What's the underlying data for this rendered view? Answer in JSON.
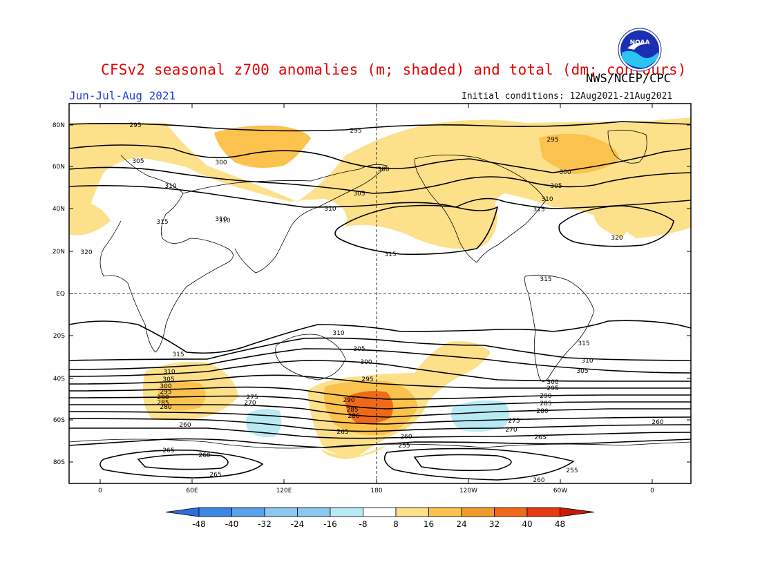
{
  "header": {
    "title": "CFSv2 seasonal z700 anomalies (m; shaded) and total (dm; contours)",
    "agency": "NWS/NCEP/CPC",
    "season": "Jun-Jul-Aug 2021",
    "initial_conditions": "Initial conditions: 12Aug2021-21Aug2021",
    "logo_text": "NOAA"
  },
  "axes": {
    "lat_ticks": [
      "80N",
      "60N",
      "40N",
      "20N",
      "EQ",
      "20S",
      "40S",
      "60S",
      "80S"
    ],
    "lon_ticks": [
      "0",
      "60E",
      "120E",
      "180",
      "120W",
      "60W",
      "0"
    ]
  },
  "colorbar": {
    "labels": [
      "-48",
      "-40",
      "-32",
      "-24",
      "-16",
      "-8",
      "8",
      "16",
      "24",
      "32",
      "40",
      "48"
    ],
    "colors": [
      "#2a6fdb",
      "#3d86e6",
      "#5aa0ea",
      "#8cc8f0",
      "#b8eaf4",
      "#ffffff",
      "#fde08a",
      "#fbc24e",
      "#f39a2c",
      "#ee6a1a",
      "#e53a0e",
      "#c81a08"
    ]
  },
  "contour_labels": [
    {
      "text": "295"
    },
    {
      "text": "295"
    },
    {
      "text": "295"
    },
    {
      "text": "305"
    },
    {
      "text": "300"
    },
    {
      "text": "300"
    },
    {
      "text": "300"
    },
    {
      "text": "310"
    },
    {
      "text": "305"
    },
    {
      "text": "305"
    },
    {
      "text": "310"
    },
    {
      "text": "310"
    },
    {
      "text": "310"
    },
    {
      "text": "315"
    },
    {
      "text": "315"
    },
    {
      "text": "320"
    },
    {
      "text": "320"
    },
    {
      "text": "315"
    },
    {
      "text": "315"
    },
    {
      "text": "315"
    },
    {
      "text": "310"
    },
    {
      "text": "305"
    },
    {
      "text": "300"
    },
    {
      "text": "295"
    },
    {
      "text": "290"
    },
    {
      "text": "285"
    },
    {
      "text": "280"
    },
    {
      "text": "265"
    },
    {
      "text": "260"
    },
    {
      "text": "255"
    },
    {
      "text": "310"
    },
    {
      "text": "305"
    },
    {
      "text": "300"
    },
    {
      "text": "295"
    },
    {
      "text": "290"
    },
    {
      "text": "285"
    },
    {
      "text": "280"
    },
    {
      "text": "315"
    },
    {
      "text": "310"
    },
    {
      "text": "305"
    },
    {
      "text": "300"
    },
    {
      "text": "295"
    },
    {
      "text": "290"
    },
    {
      "text": "285"
    },
    {
      "text": "280"
    },
    {
      "text": "275"
    },
    {
      "text": "270"
    },
    {
      "text": "275"
    },
    {
      "text": "270"
    },
    {
      "text": "265"
    },
    {
      "text": "260"
    },
    {
      "text": "260"
    },
    {
      "text": "265"
    },
    {
      "text": "260"
    },
    {
      "text": "265"
    },
    {
      "text": "255"
    },
    {
      "text": "260"
    },
    {
      "text": "310"
    }
  ]
}
